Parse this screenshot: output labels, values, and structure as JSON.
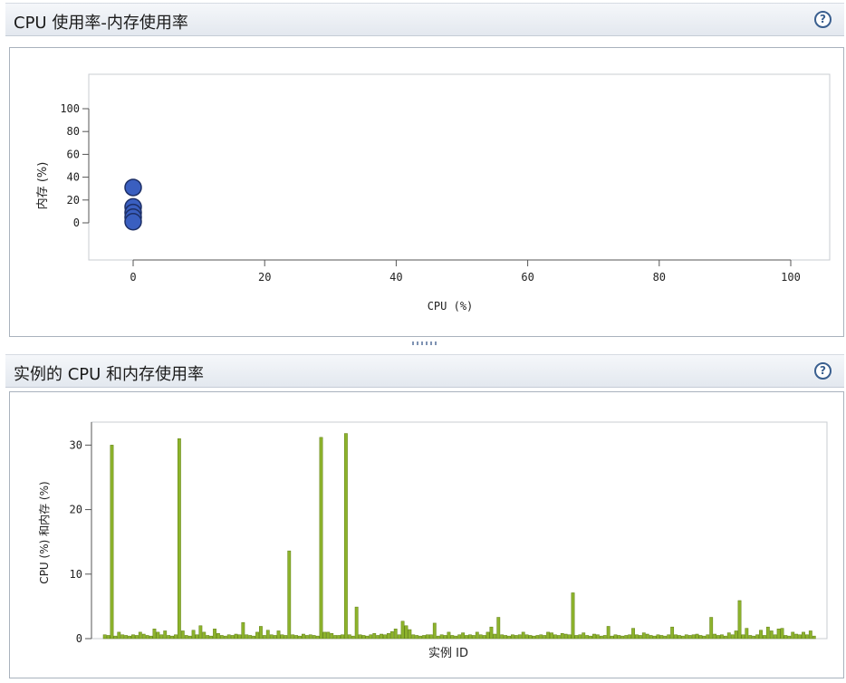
{
  "panels": {
    "scatter": {
      "title": "CPU 使用率-内存使用率",
      "help_icon": "help-icon"
    },
    "bars": {
      "title": "实例的 CPU 和内存使用率",
      "help_icon": "help-icon"
    }
  },
  "colors": {
    "scatter_point": "#3a5fc0",
    "bar_fill": "#8db32c",
    "bar_stroke": "#5f7f12",
    "axis": "#555555"
  },
  "chart_data": [
    {
      "type": "scatter",
      "xlabel": "CPU (%)",
      "ylabel": "内存 (%)",
      "xlim": [
        0,
        100
      ],
      "ylim": [
        0,
        100
      ],
      "x_ticks": [
        "0",
        "20",
        "40",
        "60",
        "80",
        "100"
      ],
      "y_ticks": [
        "0",
        "20",
        "40",
        "60",
        "80",
        "100"
      ],
      "points": [
        {
          "x": 0,
          "y": 31
        },
        {
          "x": 0,
          "y": 14
        },
        {
          "x": 0,
          "y": 9
        },
        {
          "x": 0,
          "y": 5
        },
        {
          "x": 0,
          "y": 1
        }
      ]
    },
    {
      "type": "bar",
      "xlabel": "实例 ID",
      "ylabel": "CPU (%) 和内存 (%)",
      "ylim": [
        0,
        33
      ],
      "y_ticks": [
        "0",
        "10",
        "20",
        "30"
      ],
      "values": [
        0.6,
        0.5,
        30,
        0.4,
        1,
        0.6,
        0.5,
        0.4,
        0.6,
        0.5,
        1,
        0.7,
        0.5,
        0.4,
        1.5,
        1,
        0.6,
        1.2,
        0.5,
        0.4,
        0.6,
        31,
        1.2,
        0.5,
        0.4,
        1.3,
        0.6,
        2,
        1,
        0.5,
        0.4,
        1.5,
        0.8,
        0.5,
        0.4,
        0.6,
        0.5,
        0.7,
        0.6,
        2.5,
        0.6,
        0.5,
        0.4,
        1,
        1.9,
        0.5,
        1.3,
        0.6,
        0.5,
        1.2,
        0.6,
        0.5,
        13.6,
        0.6,
        0.5,
        0.4,
        0.7,
        0.5,
        0.6,
        0.5,
        0.4,
        31.2,
        1,
        1,
        0.8,
        0.5,
        0.5,
        0.6,
        31.8,
        0.6,
        0.4,
        4.9,
        0.6,
        0.5,
        0.4,
        0.6,
        0.8,
        0.5,
        0.7,
        0.6,
        0.8,
        1.1,
        1.5,
        0.6,
        2.7,
        2,
        1.4,
        0.6,
        0.5,
        0.4,
        0.5,
        0.6,
        0.6,
        2.4,
        0.4,
        0.6,
        0.5,
        1,
        0.5,
        0.4,
        0.6,
        0.9,
        0.5,
        0.6,
        0.5,
        1,
        0.6,
        0.5,
        1,
        1.8,
        0.7,
        3.3,
        0.6,
        0.5,
        0.4,
        0.6,
        0.5,
        0.6,
        1,
        0.6,
        0.5,
        0.4,
        0.5,
        0.6,
        0.5,
        1,
        0.9,
        0.6,
        0.5,
        0.8,
        0.7,
        0.6,
        7.1,
        0.5,
        0.6,
        0.9,
        0.5,
        0.4,
        0.7,
        0.6,
        0.4,
        0.5,
        1.9,
        0.4,
        0.6,
        0.5,
        0.4,
        0.5,
        0.6,
        1.6,
        0.6,
        0.5,
        0.9,
        0.7,
        0.5,
        0.4,
        0.6,
        0.5,
        0.4,
        0.6,
        1.8,
        0.6,
        0.5,
        0.4,
        0.6,
        0.5,
        0.6,
        0.7,
        0.5,
        0.4,
        0.6,
        3.3,
        0.7,
        0.5,
        0.6,
        0.4,
        0.9,
        0.6,
        1.2,
        5.9,
        0.6,
        1.6,
        0.5,
        0.4,
        0.6,
        1.3,
        0.5,
        1.8,
        1.2,
        0.6,
        1.5,
        1.6,
        0.5,
        0.4,
        1,
        0.7,
        0.6,
        1,
        0.6,
        1.2,
        0.4
      ]
    }
  ]
}
